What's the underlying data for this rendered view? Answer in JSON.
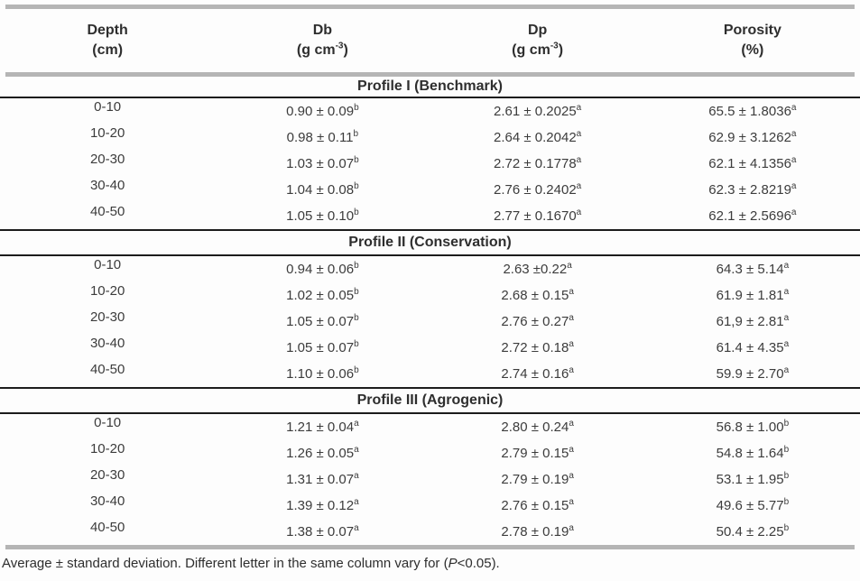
{
  "header": {
    "columns": [
      {
        "label": "Depth",
        "unit_main": "(cm)",
        "unit_sup": "",
        "unit_close": ""
      },
      {
        "label": "Db",
        "unit_main": "(g cm",
        "unit_sup": "-3",
        "unit_close": ")"
      },
      {
        "label": "Dp",
        "unit_main": "(g cm",
        "unit_sup": "-3",
        "unit_close": ")"
      },
      {
        "label": "Porosity",
        "unit_main": "(%)",
        "unit_sup": "",
        "unit_close": ""
      }
    ]
  },
  "sections": [
    {
      "title": "Profile I (Benchmark)",
      "rows": [
        {
          "depth": "0-10",
          "db": "0.90 ± 0.09",
          "db_sup": "b",
          "dp": "2.61 ± 0.2025",
          "dp_sup": "a",
          "por": "65.5 ± 1.8036",
          "por_sup": "a"
        },
        {
          "depth": "10-20",
          "db": "0.98 ± 0.11",
          "db_sup": "b",
          "dp": "2.64 ± 0.2042",
          "dp_sup": "a",
          "por": "62.9 ± 3.1262",
          "por_sup": "a"
        },
        {
          "depth": "20-30",
          "db": "1.03 ± 0.07",
          "db_sup": "b",
          "dp": "2.72 ± 0.1778",
          "dp_sup": "a",
          "por": "62.1 ± 4.1356",
          "por_sup": "a"
        },
        {
          "depth": "30-40",
          "db": "1.04 ± 0.08",
          "db_sup": "b",
          "dp": "2.76 ± 0.2402",
          "dp_sup": "a",
          "por": "62.3 ± 2.8219",
          "por_sup": "a"
        },
        {
          "depth": "40-50",
          "db": "1.05 ± 0.10",
          "db_sup": "b",
          "dp": "2.77 ± 0.1670",
          "dp_sup": "a",
          "por": "62.1 ± 2.5696",
          "por_sup": "a"
        }
      ]
    },
    {
      "title": "Profile II (Conservation)",
      "rows": [
        {
          "depth": "0-10",
          "db": "0.94 ± 0.06",
          "db_sup": "b",
          "dp": "2.63 ±0.22",
          "dp_sup": "a",
          "por": "64.3 ± 5.14",
          "por_sup": "a"
        },
        {
          "depth": "10-20",
          "db": "1.02 ± 0.05",
          "db_sup": "b",
          "dp": "2.68 ± 0.15",
          "dp_sup": "a",
          "por": "61.9 ± 1.81",
          "por_sup": "a"
        },
        {
          "depth": "20-30",
          "db": "1.05 ± 0.07",
          "db_sup": "b",
          "dp": "2.76 ± 0.27",
          "dp_sup": "a",
          "por": "61,9 ± 2.81",
          "por_sup": "a"
        },
        {
          "depth": "30-40",
          "db": "1.05 ± 0.07",
          "db_sup": "b",
          "dp": "2.72 ± 0.18",
          "dp_sup": "a",
          "por": "61.4 ± 4.35",
          "por_sup": "a"
        },
        {
          "depth": "40-50",
          "db": "1.10 ± 0.06",
          "db_sup": "b",
          "dp": "2.74 ± 0.16",
          "dp_sup": "a",
          "por": "59.9 ± 2.70",
          "por_sup": "a"
        }
      ]
    },
    {
      "title": "Profile III (Agrogenic)",
      "rows": [
        {
          "depth": "0-10",
          "db": "1.21 ± 0.04",
          "db_sup": "a",
          "dp": "2.80 ± 0.24",
          "dp_sup": "a",
          "por": "56.8 ± 1.00",
          "por_sup": "b"
        },
        {
          "depth": "10-20",
          "db": "1.26 ± 0.05",
          "db_sup": "a",
          "dp": "2.79 ± 0.15",
          "dp_sup": "a",
          "por": "54.8 ± 1.64",
          "por_sup": "b"
        },
        {
          "depth": "20-30",
          "db": "1.31 ± 0.07",
          "db_sup": "a",
          "dp": "2.79 ± 0.19",
          "dp_sup": "a",
          "por": "53.1 ± 1.95",
          "por_sup": "b"
        },
        {
          "depth": "30-40",
          "db": "1.39 ± 0.12",
          "db_sup": "a",
          "dp": "2.76 ± 0.15",
          "dp_sup": "a",
          "por": "49.6 ± 5.77",
          "por_sup": "b"
        },
        {
          "depth": "40-50",
          "db": "1.38 ± 0.07",
          "db_sup": "a",
          "dp": "2.78 ± 0.19",
          "dp_sup": "a",
          "por": "50.4 ± 2.25",
          "por_sup": "b"
        }
      ]
    }
  ],
  "footnote": {
    "part1": "Average ± standard deviation. Different letter in the same column vary for (",
    "italic": "P",
    "part2": "<0.05)."
  },
  "colors": {
    "text": "#3c3c3c",
    "heavy_rule": "#b5b5b5",
    "section_rule": "#1c1c1c",
    "background": "#fdfdfd"
  }
}
